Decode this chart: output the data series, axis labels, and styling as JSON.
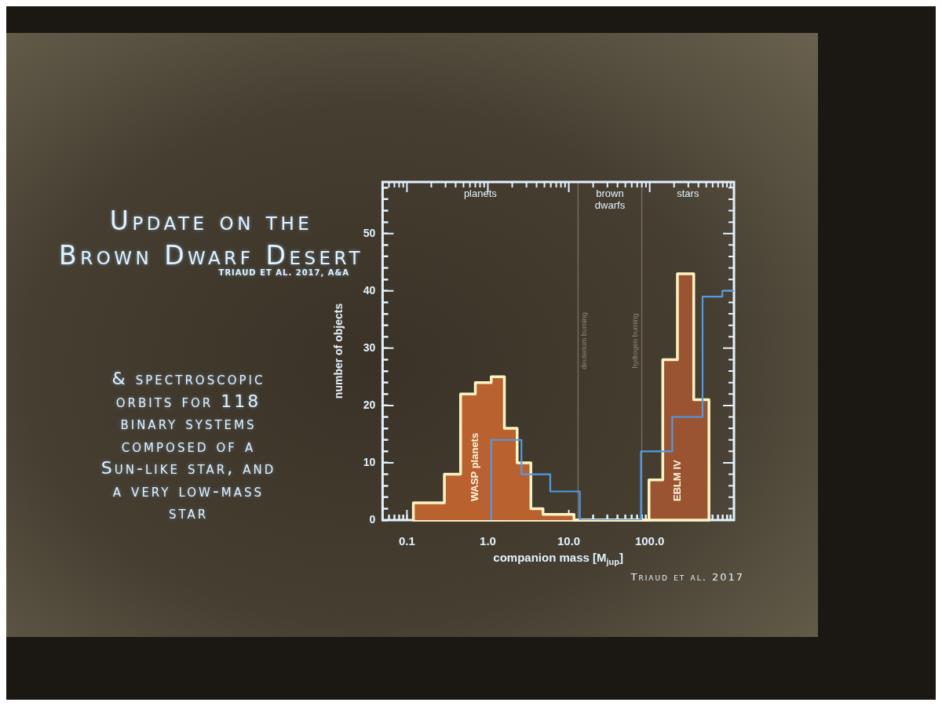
{
  "chart_data": {
    "type": "histogram",
    "title": "Update on the Brown Dwarf Desert",
    "subtitle": "TRIAUD ET AL. 2017, A&A",
    "xlabel": "companion mass [M$_{jup}$]",
    "ylabel": "number of objects",
    "log": "x",
    "bins": [
      0.12,
      0.29,
      0.46,
      0.7,
      1.1,
      1.6,
      2.3,
      3.4,
      4.8,
      11.6,
      60,
      98,
      145,
      220,
      350,
      540
    ],
    "xlim": [
      0.05,
      1100
    ],
    "xticks": [
      {
        "value": 0.06,
        "label": null
      },
      {
        "value": 0.07,
        "label": null
      },
      {
        "value": 0.08,
        "label": null
      },
      {
        "value": 0.09,
        "label": null
      },
      {
        "value": 0.1,
        "label": "0.1"
      },
      {
        "value": 0.2,
        "label": null
      },
      {
        "value": 0.3,
        "label": null
      },
      {
        "value": 0.4,
        "label": null
      },
      {
        "value": 0.5,
        "label": null
      },
      {
        "value": 0.6,
        "label": null
      },
      {
        "value": 0.7,
        "label": null
      },
      {
        "value": 0.8,
        "label": null
      },
      {
        "value": 0.9,
        "label": null
      },
      {
        "value": 1,
        "label": "1.0"
      },
      {
        "value": 2,
        "label": null
      },
      {
        "value": 3,
        "label": null
      },
      {
        "value": 4,
        "label": null
      },
      {
        "value": 5,
        "label": null
      },
      {
        "value": 6,
        "label": null
      },
      {
        "value": 7,
        "label": null
      },
      {
        "value": 8,
        "label": null
      },
      {
        "value": 9,
        "label": null
      },
      {
        "value": 10,
        "label": "10.0"
      },
      {
        "value": 20,
        "label": null
      },
      {
        "value": 30,
        "label": null
      },
      {
        "value": 40,
        "label": null
      },
      {
        "value": 50,
        "label": null
      },
      {
        "value": 60,
        "label": null
      },
      {
        "value": 70,
        "label": null
      },
      {
        "value": 80,
        "label": null
      },
      {
        "value": 90,
        "label": null
      },
      {
        "value": 100,
        "label": "100.0"
      },
      {
        "value": 200,
        "label": null
      },
      {
        "value": 300,
        "label": null
      },
      {
        "value": 400,
        "label": null
      },
      {
        "value": 500,
        "label": null
      },
      {
        "value": 600,
        "label": null
      },
      {
        "value": 700,
        "label": null
      },
      {
        "value": 800,
        "label": null
      },
      {
        "value": 900,
        "label": null
      },
      {
        "value": 1000,
        "label": null
      }
    ],
    "ylim": [
      0,
      59
    ],
    "yticks": [
      0,
      {
        "value": 2,
        "label": null
      },
      {
        "value": 4,
        "label": null
      },
      {
        "value": 6,
        "label": null
      },
      {
        "value": 8,
        "label": null
      },
      10,
      {
        "value": 12,
        "label": null
      },
      {
        "value": 14,
        "label": null
      },
      {
        "value": 16,
        "label": null
      },
      {
        "value": 18,
        "label": null
      },
      20,
      {
        "value": 22,
        "label": null
      },
      {
        "value": 24,
        "label": null
      },
      {
        "value": 26,
        "label": null
      },
      {
        "value": 28,
        "label": null
      },
      30,
      {
        "value": 32,
        "label": null
      },
      {
        "value": 34,
        "label": null
      },
      {
        "value": 36,
        "label": null
      },
      {
        "value": 38,
        "label": null
      },
      40,
      {
        "value": 42,
        "label": null
      },
      {
        "value": 44,
        "label": null
      },
      {
        "value": 46,
        "label": null
      },
      {
        "value": 48,
        "label": null
      },
      50,
      {
        "value": 52,
        "label": null
      },
      {
        "value": 54,
        "label": null
      },
      {
        "value": 56,
        "label": null
      },
      {
        "value": 58,
        "label": null
      }
    ],
    "series": [
      {
        "name": "WASP planets",
        "color": "#b9612f",
        "values": [
          3,
          8,
          22,
          24,
          25,
          16,
          10,
          2,
          1,
          0,
          0,
          0,
          0,
          0,
          0
        ]
      },
      {
        "name": "EBLM IV",
        "color": "#9a5431",
        "values": [
          0,
          0,
          0,
          0,
          0,
          0,
          0,
          0,
          0,
          0,
          0,
          7,
          28,
          43,
          21
        ]
      },
      {
        "type": "step",
        "color": "#4f9be8",
        "x": [
          1.1,
          1.1,
          2.6,
          5.9,
          13.7,
          78,
          190,
          450,
          790,
          1100
        ],
        "values": [
          0,
          14,
          8,
          5,
          0,
          12,
          18,
          39,
          40,
          40
        ]
      }
    ],
    "ref_lines": [
      {
        "axis": "x",
        "value": 13,
        "label": "deuterium burning",
        "color": "#8a8272"
      },
      {
        "axis": "x",
        "value": 80,
        "label": "hydrogen burning",
        "color": "#8a8272"
      }
    ],
    "annotations": [
      "planets",
      "brown dwarfs",
      "stars",
      "& spectroscopic orbits for 118 binary systems composed of a Sun-like star, and a very low-mass star",
      "Triaud et al. 2017"
    ]
  }
}
